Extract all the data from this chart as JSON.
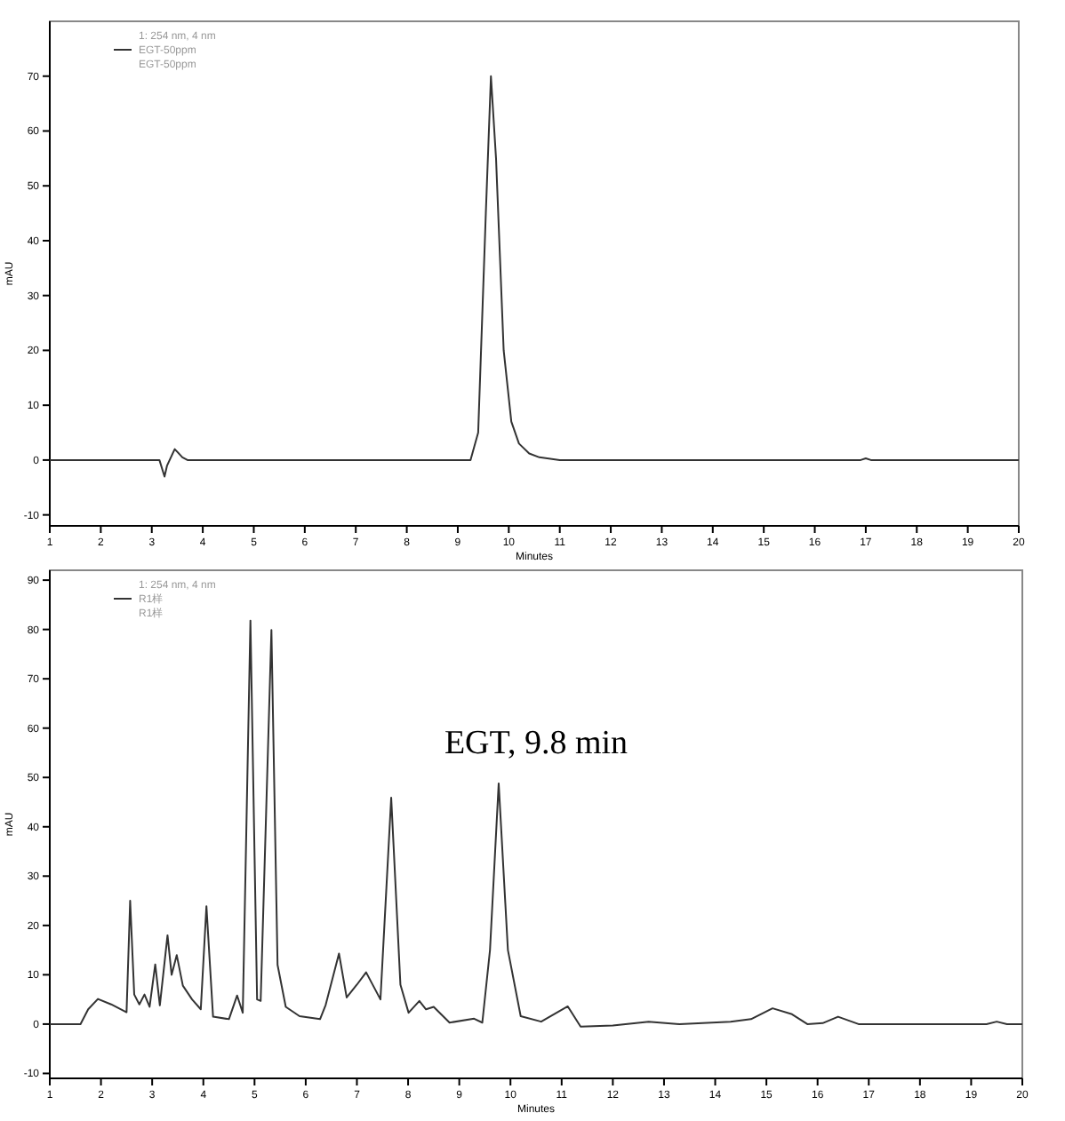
{
  "chart_data": [
    {
      "type": "line",
      "xlabel": "Minutes",
      "ylabel": "mAU",
      "legend_title": "1: 254 nm, 4 nm",
      "legend": "top left",
      "grid": false,
      "marker": "none",
      "line_style": "solid",
      "xlim": [
        1,
        20
      ],
      "xticks": [
        1,
        2,
        3,
        4,
        5,
        6,
        7,
        8,
        9,
        10,
        11,
        12,
        13,
        14,
        15,
        16,
        17,
        18,
        19,
        20
      ],
      "ylim": [
        -12,
        80
      ],
      "yticks": [
        -10,
        0,
        10,
        20,
        30,
        40,
        50,
        60,
        70
      ],
      "annotations": [
        "EGT-50ppm"
      ],
      "series": [
        {
          "name": "EGT-50ppm",
          "color": "#333333",
          "x": [
            1,
            3.15,
            3.25,
            3.3,
            3.45,
            3.6,
            3.7,
            9.25,
            9.4,
            9.55,
            9.65,
            9.75,
            9.9,
            10.05,
            10.2,
            10.4,
            10.6,
            11.0,
            16.9,
            17.0,
            17.1,
            20
          ],
          "values": [
            0,
            0,
            -3,
            -1,
            2,
            0.5,
            0,
            0,
            5,
            45,
            70,
            55,
            20,
            7,
            3,
            1.2,
            0.5,
            0,
            0,
            0.3,
            0,
            0
          ]
        }
      ]
    },
    {
      "type": "line",
      "xlabel": "Minutes",
      "ylabel": "mAU",
      "legend_title": "1: 254 nm, 4 nm",
      "legend": "top left",
      "grid": false,
      "marker": "none",
      "line_style": "solid",
      "xlim": [
        1,
        20
      ],
      "xticks": [
        1,
        2,
        3,
        4,
        5,
        6,
        7,
        8,
        9,
        10,
        11,
        12,
        13,
        14,
        15,
        16,
        17,
        18,
        19,
        20
      ],
      "ylim": [
        -11,
        92
      ],
      "yticks": [
        -10,
        0,
        10,
        20,
        30,
        40,
        50,
        60,
        70,
        80,
        90
      ],
      "annotations": [
        "R1样",
        "EGT, 9.8 min"
      ],
      "series": [
        {
          "name": "R1样",
          "color": "#333333",
          "x": [
            1,
            1.6,
            1.75,
            1.94,
            2.2,
            2.5,
            2.57,
            2.65,
            2.75,
            2.85,
            2.95,
            3.06,
            3.15,
            3.3,
            3.38,
            3.48,
            3.6,
            3.78,
            3.95,
            4.06,
            4.19,
            4.5,
            4.66,
            4.77,
            4.92,
            5.05,
            5.12,
            5.33,
            5.45,
            5.61,
            5.88,
            6.28,
            6.39,
            6.65,
            6.8,
            7.0,
            7.18,
            7.46,
            7.67,
            7.85,
            8.01,
            8.22,
            8.35,
            8.5,
            8.81,
            9.29,
            9.45,
            9.6,
            9.77,
            9.95,
            10.2,
            10.6,
            11.12,
            11.37,
            12.0,
            12.7,
            13.3,
            14.3,
            14.7,
            15.12,
            15.5,
            15.8,
            16.1,
            16.4,
            16.8,
            19.3,
            19.5,
            19.7,
            20
          ],
          "values": [
            0,
            0,
            3,
            5.1,
            4,
            2.4,
            25,
            6,
            4,
            6,
            3.5,
            12.1,
            3.8,
            18,
            10,
            14,
            7.8,
            5,
            3,
            23.9,
            1.5,
            1,
            5.8,
            2.3,
            81.8,
            5,
            4.7,
            79.9,
            12,
            3.5,
            1.6,
            1,
            3.9,
            14.3,
            5.4,
            8,
            10.5,
            5,
            45.9,
            8,
            2.3,
            4.7,
            3,
            3.5,
            0.3,
            1.1,
            0.3,
            15,
            48.8,
            15,
            1.6,
            0.5,
            3.6,
            -0.5,
            -0.3,
            0.5,
            0,
            0.5,
            1,
            3.2,
            2,
            0,
            0.2,
            1.5,
            0,
            0,
            0.5,
            0,
            0
          ]
        }
      ]
    }
  ]
}
